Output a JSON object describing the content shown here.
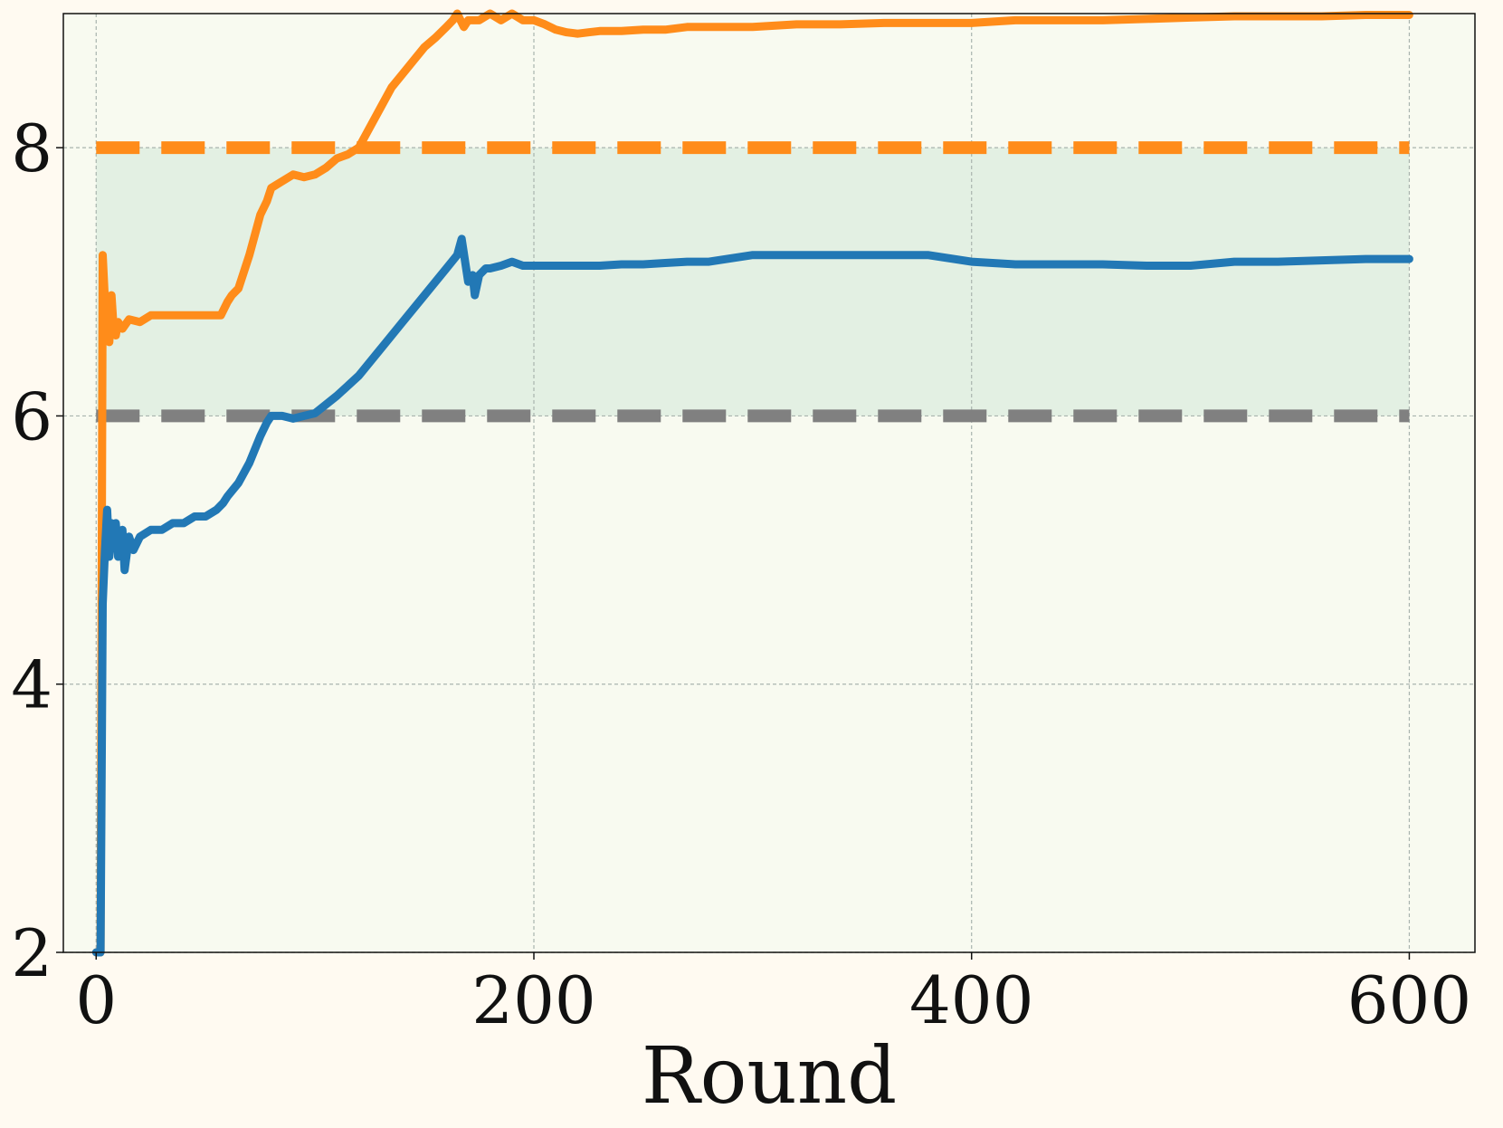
{
  "chart_data": {
    "type": "line",
    "title": "",
    "xlabel": "Round",
    "ylabel": "",
    "xlim": [
      -15,
      630
    ],
    "ylim": [
      2,
      9
    ],
    "grid": true,
    "xticks": [
      0,
      200,
      400,
      600
    ],
    "yticks": [
      2,
      4,
      6,
      8
    ],
    "shaded_band": {
      "from": 6,
      "to": 8,
      "x_from": 0,
      "x_to": 600,
      "color": "#e3f0e3"
    },
    "reference_lines": [
      {
        "y": 8,
        "color": "#ff8c1a",
        "style": "dashed"
      },
      {
        "y": 6,
        "color": "#808080",
        "style": "dashed"
      }
    ],
    "series": [
      {
        "color": "#ff8c1a",
        "x": [
          0,
          2,
          3,
          4,
          5,
          6,
          7,
          8,
          9,
          10,
          12,
          15,
          20,
          25,
          30,
          40,
          50,
          57,
          60,
          62,
          65,
          70,
          75,
          78,
          80,
          85,
          90,
          95,
          100,
          105,
          110,
          115,
          120,
          125,
          130,
          135,
          140,
          145,
          150,
          155,
          160,
          163,
          165,
          168,
          170,
          175,
          180,
          185,
          190,
          195,
          200,
          205,
          210,
          215,
          220,
          225,
          230,
          240,
          250,
          260,
          270,
          280,
          300,
          320,
          340,
          360,
          380,
          400,
          420,
          440,
          460,
          480,
          500,
          520,
          540,
          560,
          580,
          600
        ],
        "y": [
          2.0,
          2.0,
          7.2,
          6.85,
          6.75,
          6.55,
          6.9,
          6.65,
          6.6,
          6.7,
          6.65,
          6.72,
          6.7,
          6.75,
          6.75,
          6.75,
          6.75,
          6.75,
          6.85,
          6.9,
          6.95,
          7.2,
          7.5,
          7.6,
          7.7,
          7.75,
          7.8,
          7.78,
          7.8,
          7.85,
          7.92,
          7.95,
          8.0,
          8.15,
          8.3,
          8.45,
          8.55,
          8.65,
          8.75,
          8.82,
          8.9,
          8.95,
          9.0,
          8.9,
          8.95,
          8.95,
          9.0,
          8.95,
          9.0,
          8.95,
          8.95,
          8.92,
          8.88,
          8.86,
          8.85,
          8.86,
          8.87,
          8.87,
          8.88,
          8.88,
          8.9,
          8.9,
          8.9,
          8.92,
          8.92,
          8.93,
          8.93,
          8.93,
          8.95,
          8.95,
          8.95,
          8.96,
          8.97,
          8.98,
          8.98,
          8.98,
          8.99,
          8.99
        ]
      },
      {
        "color": "#2278b5",
        "x": [
          0,
          2,
          3,
          4,
          5,
          6,
          7,
          8,
          9,
          10,
          12,
          13,
          15,
          17,
          20,
          25,
          30,
          35,
          40,
          45,
          50,
          55,
          58,
          60,
          65,
          70,
          75,
          78,
          80,
          85,
          90,
          95,
          100,
          110,
          120,
          130,
          140,
          150,
          160,
          165,
          167,
          170,
          172,
          173,
          175,
          178,
          180,
          185,
          190,
          195,
          200,
          210,
          220,
          230,
          240,
          250,
          260,
          270,
          280,
          300,
          320,
          340,
          360,
          380,
          400,
          420,
          440,
          460,
          480,
          500,
          520,
          540,
          560,
          580,
          600
        ],
        "y": [
          2.0,
          2.0,
          4.6,
          5.0,
          5.3,
          4.95,
          5.2,
          5.05,
          5.2,
          4.95,
          5.15,
          4.85,
          5.1,
          5.0,
          5.1,
          5.15,
          5.15,
          5.2,
          5.2,
          5.25,
          5.25,
          5.3,
          5.35,
          5.4,
          5.5,
          5.65,
          5.85,
          5.95,
          6.0,
          6.0,
          5.98,
          6.0,
          6.02,
          6.15,
          6.3,
          6.5,
          6.7,
          6.9,
          7.1,
          7.2,
          7.32,
          7.0,
          7.05,
          6.9,
          7.05,
          7.1,
          7.1,
          7.12,
          7.15,
          7.12,
          7.12,
          7.12,
          7.12,
          7.12,
          7.13,
          7.13,
          7.14,
          7.15,
          7.15,
          7.2,
          7.2,
          7.2,
          7.2,
          7.2,
          7.15,
          7.13,
          7.13,
          7.13,
          7.12,
          7.12,
          7.15,
          7.15,
          7.16,
          7.17,
          7.17
        ]
      }
    ]
  }
}
